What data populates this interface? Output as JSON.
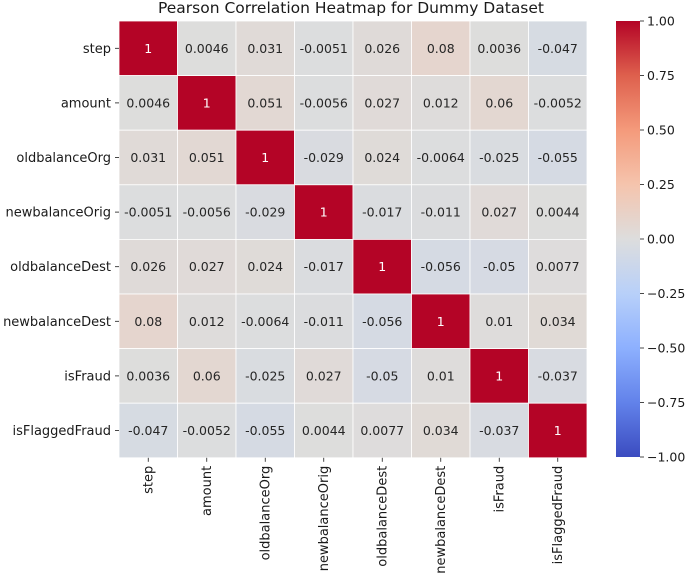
{
  "chart_data": {
    "type": "heatmap",
    "title": "Pearson Correlation Heatmap for Dummy Dataset",
    "xlabel": "",
    "ylabel": "",
    "rows": [
      "step",
      "amount",
      "oldbalanceOrg",
      "newbalanceOrig",
      "oldbalanceDest",
      "newbalanceDest",
      "isFraud",
      "isFlaggedFraud"
    ],
    "columns": [
      "step",
      "amount",
      "oldbalanceOrg",
      "newbalanceOrig",
      "oldbalanceDest",
      "newbalanceDest",
      "isFraud",
      "isFlaggedFraud"
    ],
    "values": [
      [
        1,
        0.0046,
        0.031,
        -0.0051,
        0.026,
        0.08,
        0.0036,
        -0.047
      ],
      [
        0.0046,
        1,
        0.051,
        -0.0056,
        0.027,
        0.012,
        0.06,
        -0.0052
      ],
      [
        0.031,
        0.051,
        1,
        -0.029,
        0.024,
        -0.0064,
        -0.025,
        -0.055
      ],
      [
        -0.0051,
        -0.0056,
        -0.029,
        1,
        -0.017,
        -0.011,
        0.027,
        0.0044
      ],
      [
        0.026,
        0.027,
        0.024,
        -0.017,
        1,
        -0.056,
        -0.05,
        0.0077
      ],
      [
        0.08,
        0.012,
        -0.0064,
        -0.011,
        -0.056,
        1,
        0.01,
        0.034
      ],
      [
        0.0036,
        0.06,
        -0.025,
        0.027,
        -0.05,
        0.01,
        1,
        -0.037
      ],
      [
        -0.047,
        -0.0052,
        -0.055,
        0.0044,
        0.0077,
        0.034,
        -0.037,
        1
      ]
    ],
    "labels": [
      [
        "1",
        "0.0046",
        "0.031",
        "-0.0051",
        "0.026",
        "0.08",
        "0.0036",
        "-0.047"
      ],
      [
        "0.0046",
        "1",
        "0.051",
        "-0.0056",
        "0.027",
        "0.012",
        "0.06",
        "-0.0052"
      ],
      [
        "0.031",
        "0.051",
        "1",
        "-0.029",
        "0.024",
        "-0.0064",
        "-0.025",
        "-0.055"
      ],
      [
        "-0.0051",
        "-0.0056",
        "-0.029",
        "1",
        "-0.017",
        "-0.011",
        "0.027",
        "0.0044"
      ],
      [
        "0.026",
        "0.027",
        "0.024",
        "-0.017",
        "1",
        "-0.056",
        "-0.05",
        "0.0077"
      ],
      [
        "0.08",
        "0.012",
        "-0.0064",
        "-0.011",
        "-0.056",
        "1",
        "0.01",
        "0.034"
      ],
      [
        "0.0036",
        "0.06",
        "-0.025",
        "0.027",
        "-0.05",
        "0.01",
        "1",
        "-0.037"
      ],
      [
        "-0.047",
        "-0.0052",
        "-0.055",
        "0.0044",
        "0.0077",
        "0.034",
        "-0.037",
        "1"
      ]
    ],
    "colormap": "coolwarm",
    "vmin": -1,
    "vmax": 1,
    "colorbar_ticks": [
      1,
      0.75,
      0.5,
      0.25,
      0,
      -0.25,
      -0.5,
      -0.75,
      -1
    ],
    "colorbar_tick_labels": [
      "1.00",
      "0.75",
      "0.50",
      "0.25",
      "0.00",
      "−0.25",
      "−0.50",
      "−0.75",
      "−1.00"
    ]
  }
}
